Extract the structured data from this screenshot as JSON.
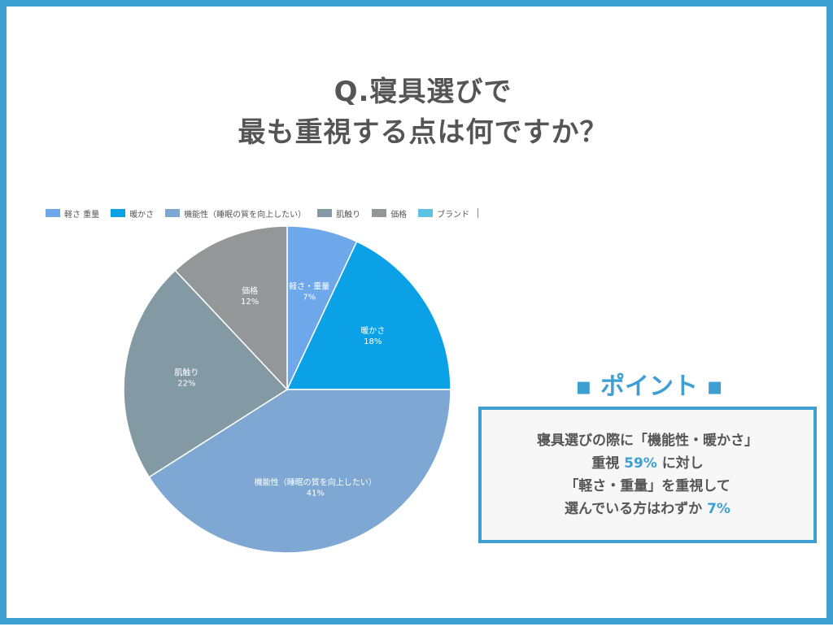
{
  "title": {
    "line1": "Q.寝具選びで",
    "line2": "最も重視する点は何ですか？"
  },
  "legend": {
    "items": [
      {
        "label": "軽さ 重量",
        "color": "#6fa8ea"
      },
      {
        "label": "暖かさ",
        "color": "#0aa1e7"
      },
      {
        "label": "機能性（睡眠の質を向上したい）",
        "color": "#7ea8d3"
      },
      {
        "label": "肌触り",
        "color": "#8399a4"
      },
      {
        "label": "価格",
        "color": "#939798"
      },
      {
        "label": "ブランド",
        "color": "#5fc2e2"
      }
    ]
  },
  "chart_data": {
    "type": "pie",
    "slices": [
      {
        "name": "軽さ・重量",
        "value": 7,
        "label": "7%",
        "color": "#6fa8ea"
      },
      {
        "name": "暖かさ",
        "value": 18,
        "label": "18%",
        "color": "#0aa1e7"
      },
      {
        "name": "機能性（睡眠の質を向上したい）",
        "value": 41,
        "label": "41%",
        "color": "#7ea8d3"
      },
      {
        "name": "肌触り",
        "value": 22,
        "label": "22%",
        "color": "#8399a4"
      },
      {
        "name": "価格",
        "value": 12,
        "label": "12%",
        "color": "#939798"
      }
    ],
    "start": "12 o'clock",
    "direction": "clockwise",
    "legend_position": "top-left"
  },
  "point": {
    "heading": "▪ ポイント ▪",
    "line1": "寝具選びの際に「機能性・暖かさ」",
    "line2_a": "重視 ",
    "line2_b": "59%",
    "line2_c": " に対し",
    "line3": "「軽さ・重量」を重視して",
    "line4_a": "選んでいる方はわずか ",
    "line4_b": "7%"
  },
  "colors": {
    "accent": "#3e9fd3",
    "text": "#555555"
  }
}
